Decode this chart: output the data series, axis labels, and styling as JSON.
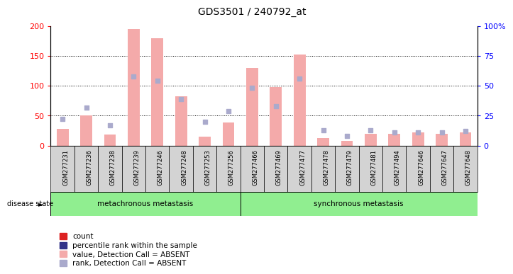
{
  "title": "GDS3501 / 240792_at",
  "samples": [
    "GSM277231",
    "GSM277236",
    "GSM277238",
    "GSM277239",
    "GSM277246",
    "GSM277248",
    "GSM277253",
    "GSM277256",
    "GSM277466",
    "GSM277469",
    "GSM277477",
    "GSM277478",
    "GSM277479",
    "GSM277481",
    "GSM277494",
    "GSM277646",
    "GSM277647",
    "GSM277648"
  ],
  "bar_values": [
    28,
    50,
    18,
    195,
    180,
    82,
    15,
    38,
    130,
    98,
    152,
    12,
    8,
    20,
    20,
    22,
    20,
    22
  ],
  "rank_values_pct": [
    22,
    32,
    17,
    58,
    54,
    39,
    20,
    29,
    48,
    33,
    56,
    13,
    8,
    13,
    11,
    11,
    11,
    12
  ],
  "groups": [
    {
      "label": "metachronous metastasis",
      "start": 0,
      "end": 8
    },
    {
      "label": "synchronous metastasis",
      "start": 8,
      "end": 18
    }
  ],
  "bar_color_absent": "#F4AAAA",
  "rank_color_absent": "#AAAACC",
  "ylim_left": [
    0,
    200
  ],
  "ylim_right": [
    0,
    100
  ],
  "yticks_left": [
    0,
    50,
    100,
    150,
    200
  ],
  "yticks_right": [
    0,
    25,
    50,
    75,
    100
  ],
  "ytick_labels_right": [
    "0",
    "25",
    "50",
    "75",
    "100%"
  ],
  "group_color": "#90EE90",
  "sample_box_color": "#D3D3D3",
  "disease_state_label": "disease state",
  "legend_entries": [
    {
      "label": "count",
      "color": "#DD2222"
    },
    {
      "label": "percentile rank within the sample",
      "color": "#333388"
    },
    {
      "label": "value, Detection Call = ABSENT",
      "color": "#F4AAAA"
    },
    {
      "label": "rank, Detection Call = ABSENT",
      "color": "#AAAACC"
    }
  ],
  "bg_color": "#FFFFFF",
  "plot_bg": "#FFFFFF"
}
